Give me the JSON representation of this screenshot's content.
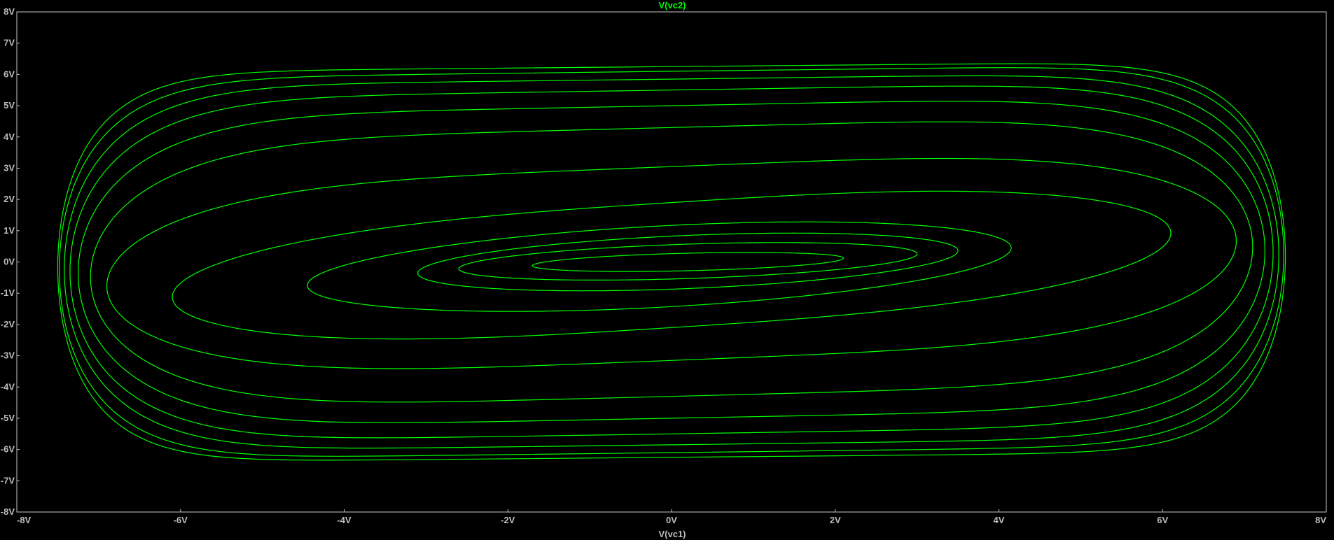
{
  "chart_data": {
    "type": "line",
    "title": "V(vc2)",
    "xlabel": "V(vc1)",
    "ylabel": "",
    "xlim": [
      -8,
      8
    ],
    "ylim": [
      -8,
      8
    ],
    "grid": false,
    "xticks": [
      "-8V",
      "-6V",
      "-4V",
      "-2V",
      "0V",
      "2V",
      "4V",
      "6V",
      "8V"
    ],
    "yticks": [
      "8V",
      "7V",
      "6V",
      "5V",
      "4V",
      "3V",
      "2V",
      "1V",
      "0V",
      "-1V",
      "-2V",
      "-3V",
      "-4V",
      "-5V",
      "-6V",
      "-7V",
      "-8V"
    ],
    "colors": {
      "background": "#000000",
      "trace": "#00ff00",
      "frame": "#c8c8c8",
      "tick_text": "#bdbdbd",
      "title_text": "#00ff00",
      "xlabel_text": "#bdbdbd"
    },
    "series": [
      {
        "name": "V(vc2)",
        "rings": [
          {
            "rx": 1.9,
            "ry": 0.28,
            "cx": 0.2,
            "cy": 0.0,
            "tilt": 0.02,
            "sharp": 1.0
          },
          {
            "rx": 2.8,
            "ry": 0.55,
            "cx": 0.2,
            "cy": 0.02,
            "tilt": 0.04,
            "sharp": 1.0
          },
          {
            "rx": 3.3,
            "ry": 0.85,
            "cx": 0.2,
            "cy": 0.0,
            "tilt": 0.06,
            "sharp": 1.0
          },
          {
            "rx": 4.3,
            "ry": 1.3,
            "cx": -0.15,
            "cy": -0.15,
            "tilt": 0.1,
            "sharp": 1.0
          },
          {
            "rx": 6.1,
            "ry": 2.0,
            "cx": 0.0,
            "cy": -0.1,
            "tilt": 0.17,
            "sharp": 1.4
          },
          {
            "rx": 6.9,
            "ry": 3.1,
            "cx": 0.0,
            "cy": -0.05,
            "tilt": 0.12,
            "sharp": 2.0
          },
          {
            "rx": 7.1,
            "ry": 4.3,
            "cx": 0.0,
            "cy": 0.0,
            "tilt": 0.08,
            "sharp": 2.6
          },
          {
            "rx": 7.25,
            "ry": 5.0,
            "cx": 0.0,
            "cy": 0.0,
            "tilt": 0.06,
            "sharp": 3.0
          },
          {
            "rx": 7.35,
            "ry": 5.5,
            "cx": 0.0,
            "cy": 0.0,
            "tilt": 0.05,
            "sharp": 3.4
          },
          {
            "rx": 7.42,
            "ry": 5.85,
            "cx": 0.0,
            "cy": 0.0,
            "tilt": 0.04,
            "sharp": 3.8
          },
          {
            "rx": 7.48,
            "ry": 6.1,
            "cx": 0.0,
            "cy": 0.0,
            "tilt": 0.04,
            "sharp": 4.4
          },
          {
            "rx": 7.5,
            "ry": 6.25,
            "cx": 0.0,
            "cy": 0.0,
            "tilt": 0.03,
            "sharp": 5.0
          }
        ]
      }
    ]
  }
}
